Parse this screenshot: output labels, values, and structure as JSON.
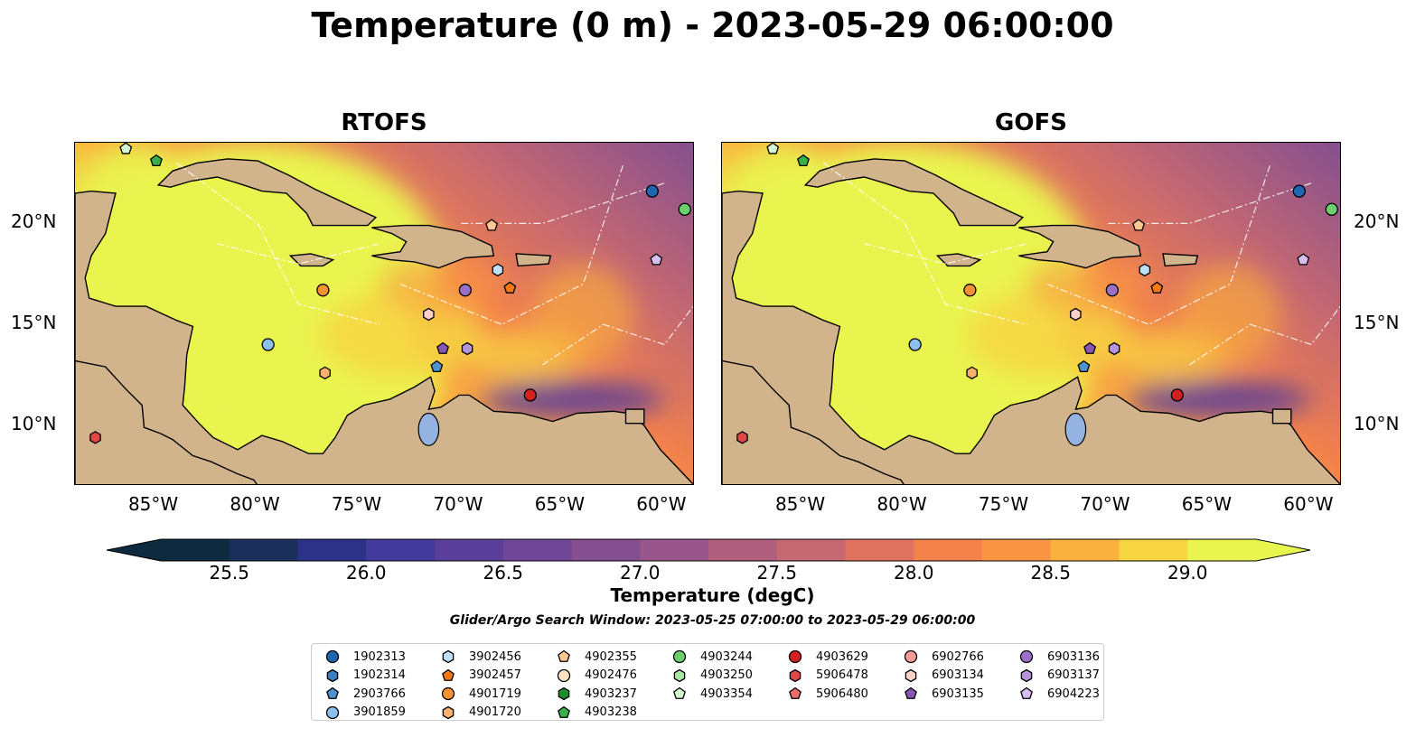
{
  "figure": {
    "title": "Temperature (0 m) - 2023-05-29 06:00:00",
    "search_window": "Glider/Argo Search Window: 2023-05-25 07:00:00 to 2023-05-29 06:00:00"
  },
  "panels": [
    {
      "title": "RTOFS"
    },
    {
      "title": "GOFS"
    }
  ],
  "axes": {
    "lon_range": [
      -89,
      -58.5
    ],
    "lat_range": [
      7,
      24
    ],
    "lon_ticks": [
      "85°W",
      "80°W",
      "75°W",
      "70°W",
      "65°W",
      "60°W"
    ],
    "lat_ticks": [
      "20°N",
      "15°N",
      "10°N"
    ]
  },
  "colorbar": {
    "label": "Temperature (degC)",
    "ticks": [
      "25.5",
      "26.0",
      "26.5",
      "27.0",
      "27.5",
      "28.0",
      "28.5",
      "29.0"
    ],
    "range": [
      25.25,
      29.25
    ],
    "extend": "both",
    "colors": [
      "#0d2a3e",
      "#1b2f5c",
      "#2b3288",
      "#433a9e",
      "#5a3f9a",
      "#6f4796",
      "#844f8f",
      "#99568a",
      "#b05f7c",
      "#c56872",
      "#e0735f",
      "#f3824b",
      "#fa9643",
      "#fbb13d",
      "#f7d542",
      "#e9f44f"
    ]
  },
  "land_color": "#d2b48c",
  "water_color": "#95b3e0",
  "legend": {
    "columns": [
      [
        {
          "label": "1902313",
          "marker": "circle",
          "color": "#1f66b0"
        },
        {
          "label": "1902314",
          "marker": "hexagon",
          "color": "#3a7dc2"
        },
        {
          "label": "2903766",
          "marker": "pentagon",
          "color": "#4f92d0"
        },
        {
          "label": "3901859",
          "marker": "circle",
          "color": "#8cc0ec"
        }
      ],
      [
        {
          "label": "3902456",
          "marker": "hexagon",
          "color": "#bfe0f7"
        },
        {
          "label": "3902457",
          "marker": "pentagon",
          "color": "#f47a16"
        },
        {
          "label": "4901719",
          "marker": "circle",
          "color": "#f79233"
        },
        {
          "label": "4901720",
          "marker": "hexagon",
          "color": "#fbb06c"
        }
      ],
      [
        {
          "label": "4902355",
          "marker": "pentagon",
          "color": "#fcc891"
        },
        {
          "label": "4902476",
          "marker": "circle",
          "color": "#fde2c4"
        },
        {
          "label": "4903237",
          "marker": "hexagon",
          "color": "#1a8f2e"
        },
        {
          "label": "4903238",
          "marker": "pentagon",
          "color": "#37b04c"
        }
      ],
      [
        {
          "label": "4903244",
          "marker": "circle",
          "color": "#6bcf6e"
        },
        {
          "label": "4903250",
          "marker": "hexagon",
          "color": "#a6e6a1"
        },
        {
          "label": "4903354",
          "marker": "pentagon",
          "color": "#d5f7cf"
        }
      ],
      [
        {
          "label": "4903629",
          "marker": "circle",
          "color": "#d42020"
        },
        {
          "label": "5906478",
          "marker": "hexagon",
          "color": "#e04848"
        },
        {
          "label": "5906480",
          "marker": "pentagon",
          "color": "#ec6b6b"
        }
      ],
      [
        {
          "label": "6902766",
          "marker": "circle",
          "color": "#f59a96"
        },
        {
          "label": "6903134",
          "marker": "hexagon",
          "color": "#fccfc9"
        },
        {
          "label": "6903135",
          "marker": "pentagon",
          "color": "#8656b2"
        }
      ],
      [
        {
          "label": "6903136",
          "marker": "circle",
          "color": "#9b6fc8"
        },
        {
          "label": "6903137",
          "marker": "hexagon",
          "color": "#b594dc"
        },
        {
          "label": "6904223",
          "marker": "pentagon",
          "color": "#d6bdf2"
        }
      ]
    ]
  },
  "floats": [
    {
      "id": "4903354",
      "lon": -86.5,
      "lat": 23.7
    },
    {
      "id": "4903238",
      "lon": -85.0,
      "lat": 23.1
    },
    {
      "id": "1902313",
      "lon": -60.6,
      "lat": 21.6
    },
    {
      "id": "4903244",
      "lon": -59.0,
      "lat": 20.7
    },
    {
      "id": "4902355",
      "lon": -68.5,
      "lat": 19.9
    },
    {
      "id": "6904223",
      "lon": -60.4,
      "lat": 18.2
    },
    {
      "id": "3902456",
      "lon": -68.2,
      "lat": 17.7
    },
    {
      "id": "3902457",
      "lon": -67.6,
      "lat": 16.8
    },
    {
      "id": "4901719",
      "lon": -76.8,
      "lat": 16.7
    },
    {
      "id": "6903136",
      "lon": -69.8,
      "lat": 16.7
    },
    {
      "id": "6903134",
      "lon": -71.6,
      "lat": 15.5
    },
    {
      "id": "3901859",
      "lon": -79.5,
      "lat": 14.0
    },
    {
      "id": "6903135",
      "lon": -70.9,
      "lat": 13.8
    },
    {
      "id": "6903137",
      "lon": -69.7,
      "lat": 13.8
    },
    {
      "id": "2903766",
      "lon": -71.2,
      "lat": 12.9
    },
    {
      "id": "4901720",
      "lon": -76.7,
      "lat": 12.6
    },
    {
      "id": "4903629",
      "lon": -66.6,
      "lat": 11.5
    },
    {
      "id": "5906478",
      "lon": -88.0,
      "lat": 9.4
    }
  ]
}
